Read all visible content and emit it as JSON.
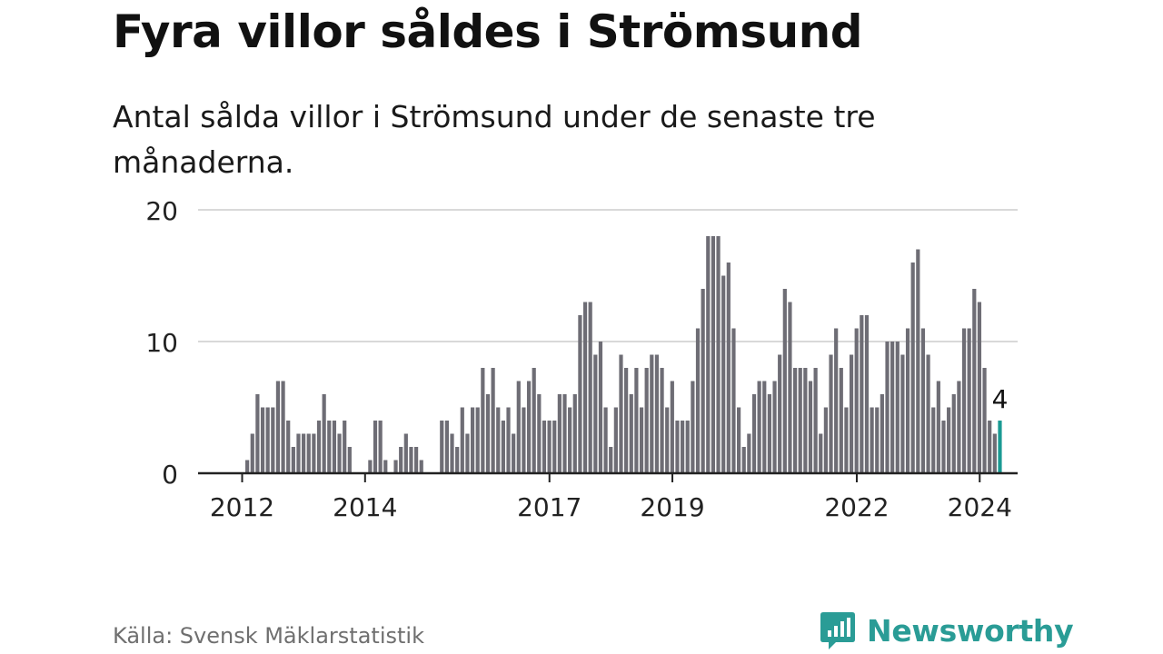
{
  "header": {
    "title": "Fyra villor såldes i Strömsund",
    "subtitle": "Antal sålda villor i Strömsund under de senaste tre månaderna."
  },
  "footer": {
    "source": "Källa: Svensk Mäklarstatistik",
    "brand": "Newsworthy"
  },
  "colors": {
    "bar": "#6e6d75",
    "highlight": "#1a9a93",
    "grid": "#d9d9d9",
    "axis": "#222222",
    "brand": "#2a9c96"
  },
  "chart_data": {
    "type": "bar",
    "title": "Fyra villor såldes i Strömsund",
    "subtitle": "Antal sålda villor i Strömsund under de senaste tre månaderna.",
    "xlabel": "",
    "ylabel": "",
    "ylim": [
      0,
      20
    ],
    "yticks": [
      0,
      10,
      20
    ],
    "grid": true,
    "x_start": 2012.0,
    "x_step": 0.0833,
    "xtick_labels": [
      {
        "label": "2012",
        "value": 2012.0
      },
      {
        "label": "2014",
        "value": 2014.0
      },
      {
        "label": "2017",
        "value": 2017.0
      },
      {
        "label": "2019",
        "value": 2019.0
      },
      {
        "label": "2022",
        "value": 2022.0
      },
      {
        "label": "2024",
        "value": 2024.0
      }
    ],
    "values": [
      0,
      1,
      3,
      6,
      5,
      5,
      5,
      7,
      7,
      4,
      2,
      3,
      3,
      3,
      3,
      4,
      6,
      4,
      4,
      3,
      4,
      2,
      0,
      0,
      0,
      1,
      4,
      4,
      1,
      0,
      1,
      2,
      3,
      2,
      2,
      1,
      0,
      0,
      0,
      4,
      4,
      3,
      2,
      5,
      3,
      5,
      5,
      8,
      6,
      8,
      5,
      4,
      5,
      3,
      7,
      5,
      7,
      8,
      6,
      4,
      4,
      4,
      6,
      6,
      5,
      6,
      12,
      13,
      13,
      9,
      10,
      5,
      2,
      5,
      9,
      8,
      6,
      8,
      5,
      8,
      9,
      9,
      8,
      5,
      7,
      4,
      4,
      4,
      7,
      11,
      14,
      18,
      18,
      18,
      15,
      16,
      11,
      5,
      2,
      3,
      6,
      7,
      7,
      6,
      7,
      9,
      14,
      13,
      8,
      8,
      8,
      7,
      8,
      3,
      5,
      9,
      11,
      8,
      5,
      9,
      11,
      12,
      12,
      5,
      5,
      6,
      10,
      10,
      10,
      9,
      11,
      16,
      17,
      11,
      9,
      5,
      7,
      4,
      5,
      6,
      7,
      11,
      11,
      14,
      13,
      8,
      4,
      3,
      4
    ],
    "highlight_index": 148,
    "highlight_label": "4"
  }
}
